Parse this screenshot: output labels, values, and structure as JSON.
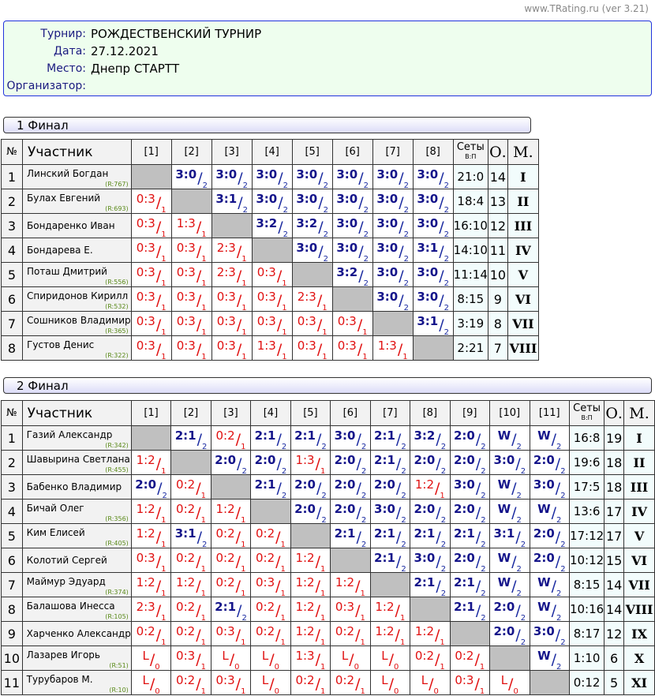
{
  "site": "www.TRating.ru (ver 3.21)",
  "info": [
    {
      "label": "Турнир:",
      "value": "РОЖДЕСТВЕНСКИЙ ТУРНИР"
    },
    {
      "label": "Дата:",
      "value": "27.12.2021"
    },
    {
      "label": "Место:",
      "value": "Днепр СТАРТТ"
    },
    {
      "label": "Организатор:",
      "value": ""
    }
  ],
  "headers": {
    "num": "№",
    "participant": "Участник",
    "sets": "Сеты",
    "sets_sub": "В:П",
    "points": "О.",
    "place": "М."
  },
  "colors": {
    "win": "#14148a",
    "lose": "#e01010",
    "rating": "#5a8a1a"
  },
  "groups": [
    {
      "title": "1 Финал",
      "players": [
        {
          "n": "1",
          "name": "Линский Богдан",
          "rating": "(R:767)",
          "res": [
            "X",
            "3:0/2",
            "3:0/2",
            "3:0/2",
            "3:0/2",
            "3:0/2",
            "3:0/2",
            "3:0/2"
          ],
          "sets": "21:0",
          "points": "14",
          "place": "I"
        },
        {
          "n": "2",
          "name": "Булах Евгений",
          "rating": "(R:693)",
          "res": [
            "0:3/1",
            "X",
            "3:1/2",
            "3:0/2",
            "3:0/2",
            "3:0/2",
            "3:0/2",
            "3:0/2"
          ],
          "sets": "18:4",
          "points": "13",
          "place": "II"
        },
        {
          "n": "3",
          "name": "Бондаренко Иван",
          "rating": "",
          "res": [
            "0:3/1",
            "1:3/1",
            "X",
            "3:2/2",
            "3:2/2",
            "3:0/2",
            "3:0/2",
            "3:0/2"
          ],
          "sets": "16:10",
          "points": "12",
          "place": "III"
        },
        {
          "n": "4",
          "name": "Бондарева Е.",
          "rating": "",
          "res": [
            "0:3/1",
            "0:3/1",
            "2:3/1",
            "X",
            "3:0/2",
            "3:0/2",
            "3:0/2",
            "3:1/2"
          ],
          "sets": "14:10",
          "points": "11",
          "place": "IV"
        },
        {
          "n": "5",
          "name": "Поташ Дмитрий",
          "rating": "(R:556)",
          "res": [
            "0:3/1",
            "0:3/1",
            "2:3/1",
            "0:3/1",
            "X",
            "3:2/2",
            "3:0/2",
            "3:0/2"
          ],
          "sets": "11:14",
          "points": "10",
          "place": "V"
        },
        {
          "n": "6",
          "name": "Спиридонов Кирилл",
          "rating": "(R:532)",
          "res": [
            "0:3/1",
            "0:3/1",
            "0:3/1",
            "0:3/1",
            "2:3/1",
            "X",
            "3:0/2",
            "3:0/2"
          ],
          "sets": "8:15",
          "points": "9",
          "place": "VI"
        },
        {
          "n": "7",
          "name": "Сошников Владимир",
          "rating": "(R:365)",
          "res": [
            "0:3/1",
            "0:3/1",
            "0:3/1",
            "0:3/1",
            "0:3/1",
            "0:3/1",
            "X",
            "3:1/2"
          ],
          "sets": "3:19",
          "points": "8",
          "place": "VII"
        },
        {
          "n": "8",
          "name": "Густов Денис",
          "rating": "(R:322)",
          "res": [
            "0:3/1",
            "0:3/1",
            "0:3/1",
            "1:3/1",
            "0:3/1",
            "0:3/1",
            "1:3/1",
            "X"
          ],
          "sets": "2:21",
          "points": "7",
          "place": "VIII"
        }
      ]
    },
    {
      "title": "2 Финал",
      "players": [
        {
          "n": "1",
          "name": "Газий Александр",
          "rating": "(R:342)",
          "res": [
            "X",
            "2:1/2",
            "0:2/1",
            "2:1/2",
            "2:1/2",
            "3:0/2",
            "2:1/2",
            "3:2/2",
            "2:0/2",
            "W/2",
            "W/2"
          ],
          "sets": "16:8",
          "points": "19",
          "place": "I"
        },
        {
          "n": "2",
          "name": "Шавырина Светлана",
          "rating": "(R:455)",
          "res": [
            "1:2/1",
            "X",
            "2:0/2",
            "2:0/2",
            "1:3/1",
            "2:0/2",
            "2:1/2",
            "2:0/2",
            "2:0/2",
            "3:0/2",
            "2:0/2"
          ],
          "sets": "19:6",
          "points": "18",
          "place": "II"
        },
        {
          "n": "3",
          "name": "Бабенко Владимир",
          "rating": "",
          "res": [
            "2:0/2",
            "0:2/1",
            "X",
            "2:1/2",
            "2:0/2",
            "2:0/2",
            "2:0/2",
            "1:2/1",
            "3:0/2",
            "W/2",
            "3:0/2"
          ],
          "sets": "17:5",
          "points": "18",
          "place": "III"
        },
        {
          "n": "4",
          "name": "Бичай Олег",
          "rating": "(R:356)",
          "res": [
            "1:2/1",
            "0:2/1",
            "1:2/1",
            "X",
            "2:0/2",
            "2:0/2",
            "3:0/2",
            "2:0/2",
            "2:0/2",
            "W/2",
            "W/2"
          ],
          "sets": "13:6",
          "points": "17",
          "place": "IV"
        },
        {
          "n": "5",
          "name": "Ким Елисей",
          "rating": "(R:405)",
          "res": [
            "1:2/1",
            "3:1/2",
            "0:2/1",
            "0:2/1",
            "X",
            "2:1/2",
            "2:1/2",
            "2:1/2",
            "2:1/2",
            "3:1/2",
            "2:0/2"
          ],
          "sets": "17:12",
          "points": "17",
          "place": "V"
        },
        {
          "n": "6",
          "name": "Колотий Сергей",
          "rating": "",
          "res": [
            "0:3/1",
            "0:2/1",
            "0:2/1",
            "0:2/1",
            "1:2/1",
            "X",
            "2:1/2",
            "3:0/2",
            "2:0/2",
            "W/2",
            "2:0/2"
          ],
          "sets": "10:12",
          "points": "15",
          "place": "VI"
        },
        {
          "n": "7",
          "name": "Маймур Эдуард",
          "rating": "(R:374)",
          "res": [
            "1:2/1",
            "1:2/1",
            "0:2/1",
            "0:3/1",
            "1:2/1",
            "1:2/1",
            "X",
            "2:1/2",
            "2:1/2",
            "W/2",
            "W/2"
          ],
          "sets": "8:15",
          "points": "14",
          "place": "VII"
        },
        {
          "n": "8",
          "name": "Балашова Инесса",
          "rating": "(R:105)",
          "res": [
            "2:3/1",
            "0:2/1",
            "2:1/2",
            "0:2/1",
            "1:2/1",
            "0:3/1",
            "1:2/1",
            "X",
            "2:1/2",
            "2:0/2",
            "W/2"
          ],
          "sets": "10:16",
          "points": "14",
          "place": "VIII"
        },
        {
          "n": "9",
          "name": "Харченко Александр",
          "rating": "",
          "res": [
            "0:2/1",
            "0:2/1",
            "0:3/1",
            "0:2/1",
            "1:2/1",
            "0:2/1",
            "1:2/1",
            "1:2/1",
            "X",
            "2:0/2",
            "3:0/2"
          ],
          "sets": "8:17",
          "points": "12",
          "place": "IX"
        },
        {
          "n": "10",
          "name": "Лазарев Игорь",
          "rating": "(R:51)",
          "res": [
            "L/0",
            "0:3/1",
            "L/0",
            "L/0",
            "1:3/1",
            "L/0",
            "L/0",
            "0:2/1",
            "0:2/1",
            "X",
            "W/2"
          ],
          "sets": "1:10",
          "points": "6",
          "place": "X"
        },
        {
          "n": "11",
          "name": "Турубаров М.",
          "rating": "(R:10)",
          "res": [
            "L/0",
            "0:2/1",
            "0:3/1",
            "L/0",
            "0:2/1",
            "0:2/1",
            "L/0",
            "L/0",
            "0:3/1",
            "L/0",
            "X"
          ],
          "sets": "0:12",
          "points": "5",
          "place": "XI"
        }
      ]
    }
  ]
}
